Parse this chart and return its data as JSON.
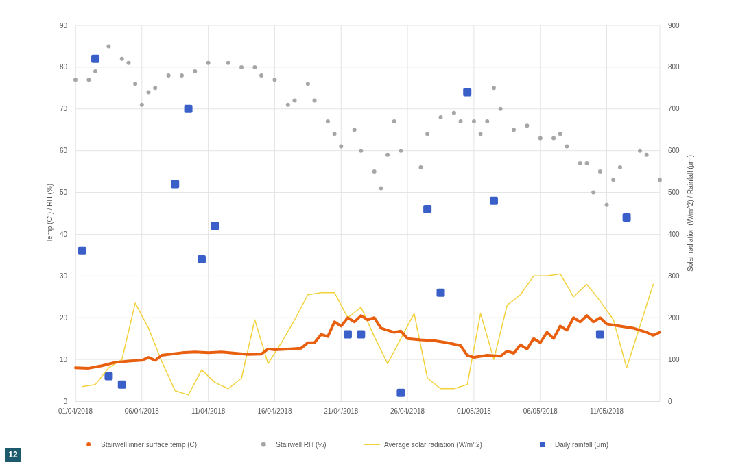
{
  "chart_data": {
    "type": "line",
    "xlabel": null,
    "ylabel": "Temp (C°) / RH (%)",
    "y2label": "Solar radiation (W/m^2) / Rainfall (μm)",
    "xlim": [
      "2018-04-01",
      "2018-05-15"
    ],
    "xticks": [
      {
        "value": "2018-04-01",
        "label": "01/04/2018"
      },
      {
        "value": "2018-04-06",
        "label": "06/04/2018"
      },
      {
        "value": "2018-04-11",
        "label": "11/04/2018"
      },
      {
        "value": "2018-04-16",
        "label": "16/04/2018"
      },
      {
        "value": "2018-04-21",
        "label": "21/04/2018"
      },
      {
        "value": "2018-04-26",
        "label": "26/04/2018"
      },
      {
        "value": "2018-05-01",
        "label": "01/05/2018"
      },
      {
        "value": "2018-05-06",
        "label": "06/05/2018"
      },
      {
        "value": "2018-05-11",
        "label": "11/05/2018"
      }
    ],
    "ylim": [
      0,
      90
    ],
    "yticks": [
      0,
      10,
      20,
      30,
      40,
      50,
      60,
      70,
      80,
      90
    ],
    "y2lim": [
      0,
      900
    ],
    "y2ticks": [
      0,
      100,
      200,
      300,
      400,
      500,
      600,
      700,
      800,
      900
    ],
    "grid": true,
    "legend": "bottom",
    "annotations": [
      "12"
    ],
    "series": [
      {
        "name": "Stairwell inner surface temp (C)",
        "color": "#e8600f",
        "marker": "none",
        "x": [
          "2018-04-01T00:00",
          "2018-04-02T00:00",
          "2018-04-03T00:00",
          "2018-04-04T00:00",
          "2018-04-05T00:00",
          "2018-04-06T00:00",
          "2018-04-06T12:00",
          "2018-04-07T00:00",
          "2018-04-07T12:00",
          "2018-04-08T00:00",
          "2018-04-09T00:00",
          "2018-04-10T00:00",
          "2018-04-11T00:00",
          "2018-04-12T00:00",
          "2018-04-13T00:00",
          "2018-04-14T00:00",
          "2018-04-15T00:00",
          "2018-04-15T12:00",
          "2018-04-16T00:00",
          "2018-04-17T00:00",
          "2018-04-18T00:00",
          "2018-04-18T12:00",
          "2018-04-19T00:00",
          "2018-04-19T12:00",
          "2018-04-20T00:00",
          "2018-04-20T12:00",
          "2018-04-21T00:00",
          "2018-04-21T12:00",
          "2018-04-22T00:00",
          "2018-04-22T12:00",
          "2018-04-23T00:00",
          "2018-04-23T12:00",
          "2018-04-24T00:00",
          "2018-04-25T00:00",
          "2018-04-25T12:00",
          "2018-04-26T00:00",
          "2018-04-27T00:00",
          "2018-04-28T00:00",
          "2018-04-29T00:00",
          "2018-04-30T00:00",
          "2018-04-30T12:00",
          "2018-05-01T00:00",
          "2018-05-02T00:00",
          "2018-05-03T00:00",
          "2018-05-03T12:00",
          "2018-05-04T00:00",
          "2018-05-04T12:00",
          "2018-05-05T00:00",
          "2018-05-05T12:00",
          "2018-05-06T00:00",
          "2018-05-06T12:00",
          "2018-05-07T00:00",
          "2018-05-07T12:00",
          "2018-05-08T00:00",
          "2018-05-08T12:00",
          "2018-05-09T00:00",
          "2018-05-09T12:00",
          "2018-05-10T00:00",
          "2018-05-10T12:00",
          "2018-05-11T00:00",
          "2018-05-12T00:00",
          "2018-05-13T00:00",
          "2018-05-14T00:00",
          "2018-05-14T12:00",
          "2018-05-15T00:00"
        ],
        "values": [
          8,
          7.9,
          8.5,
          9.3,
          9.6,
          9.8,
          10.5,
          9.8,
          11,
          11.2,
          11.6,
          11.8,
          11.6,
          11.8,
          11.5,
          11.2,
          11.3,
          12.5,
          12.3,
          12.5,
          12.7,
          14,
          14,
          16,
          15.5,
          19,
          18,
          20,
          19,
          20.5,
          19.5,
          20,
          17.5,
          16.5,
          16.8,
          15,
          14.7,
          14.5,
          14,
          13.3,
          11,
          10.5,
          11,
          10.8,
          12,
          11.5,
          13.5,
          12.5,
          15,
          14,
          16.5,
          15,
          18,
          17,
          20,
          19,
          20.5,
          19,
          20,
          18.5,
          18,
          17.5,
          16.5,
          15.8,
          16.5
        ]
      },
      {
        "name": "Stairwell RH (%)",
        "type": "scatter",
        "color": "#a6a6a6",
        "marker": "circle",
        "x": [
          "2018-04-01T00:00",
          "2018-04-02T00:00",
          "2018-04-02T12:00",
          "2018-04-03T12:00",
          "2018-04-04T12:00",
          "2018-04-05T00:00",
          "2018-04-05T12:00",
          "2018-04-06T00:00",
          "2018-04-06T12:00",
          "2018-04-07T00:00",
          "2018-04-08T00:00",
          "2018-04-09T00:00",
          "2018-04-10T00:00",
          "2018-04-11T00:00",
          "2018-04-12T12:00",
          "2018-04-13T12:00",
          "2018-04-14T12:00",
          "2018-04-15T00:00",
          "2018-04-16T00:00",
          "2018-04-17T00:00",
          "2018-04-17T12:00",
          "2018-04-18T12:00",
          "2018-04-19T00:00",
          "2018-04-20T00:00",
          "2018-04-20T12:00",
          "2018-04-21T00:00",
          "2018-04-22T00:00",
          "2018-04-22T12:00",
          "2018-04-23T12:00",
          "2018-04-24T00:00",
          "2018-04-24T12:00",
          "2018-04-25T00:00",
          "2018-04-25T12:00",
          "2018-04-27T00:00",
          "2018-04-27T12:00",
          "2018-04-28T12:00",
          "2018-04-29T12:00",
          "2018-04-30T00:00",
          "2018-05-01T00:00",
          "2018-05-01T12:00",
          "2018-05-02T00:00",
          "2018-05-02T12:00",
          "2018-05-03T00:00",
          "2018-05-04T00:00",
          "2018-05-05T00:00",
          "2018-05-06T00:00",
          "2018-05-07T00:00",
          "2018-05-07T12:00",
          "2018-05-08T00:00",
          "2018-05-09T00:00",
          "2018-05-09T12:00",
          "2018-05-10T00:00",
          "2018-05-10T12:00",
          "2018-05-11T00:00",
          "2018-05-11T12:00",
          "2018-05-12T00:00",
          "2018-05-13T12:00",
          "2018-05-14T00:00",
          "2018-05-15T00:00"
        ],
        "values": [
          77,
          77,
          79,
          85,
          82,
          81,
          76,
          71,
          74,
          75,
          78,
          78,
          79,
          81,
          81,
          80,
          80,
          78,
          77,
          71,
          72,
          76,
          72,
          67,
          64,
          61,
          65,
          60,
          55,
          51,
          59,
          67,
          60,
          56,
          64,
          68,
          69,
          67,
          67,
          64,
          67,
          75,
          70,
          65,
          66,
          63,
          63,
          64,
          61,
          57,
          57,
          50,
          55,
          47,
          53,
          56,
          60,
          59,
          53
        ]
      },
      {
        "name": "Average solar radiation (W/m^2)",
        "type": "line",
        "axis": "y2",
        "color": "#f2d13a",
        "marker": "none",
        "x": [
          "2018-04-01T12:00",
          "2018-04-02T12:00",
          "2018-04-03T12:00",
          "2018-04-04T12:00",
          "2018-04-05T12:00",
          "2018-04-06T12:00",
          "2018-04-07T12:00",
          "2018-04-08T12:00",
          "2018-04-09T12:00",
          "2018-04-10T12:00",
          "2018-04-11T12:00",
          "2018-04-12T12:00",
          "2018-04-13T12:00",
          "2018-04-14T12:00",
          "2018-04-15T12:00",
          "2018-04-16T12:00",
          "2018-04-17T12:00",
          "2018-04-18T12:00",
          "2018-04-19T12:00",
          "2018-04-20T12:00",
          "2018-04-21T12:00",
          "2018-04-22T12:00",
          "2018-04-23T12:00",
          "2018-04-24T12:00",
          "2018-04-25T12:00",
          "2018-04-26T12:00",
          "2018-04-27T12:00",
          "2018-04-28T12:00",
          "2018-04-29T12:00",
          "2018-04-30T12:00",
          "2018-05-01T12:00",
          "2018-05-02T12:00",
          "2018-05-03T12:00",
          "2018-05-04T12:00",
          "2018-05-05T12:00",
          "2018-05-06T12:00",
          "2018-05-07T12:00",
          "2018-05-08T12:00",
          "2018-05-09T12:00",
          "2018-05-10T12:00",
          "2018-05-11T12:00",
          "2018-05-12T12:00",
          "2018-05-13T12:00",
          "2018-05-14T12:00"
        ],
        "values": [
          35,
          40,
          80,
          100,
          235,
          175,
          95,
          25,
          15,
          75,
          45,
          30,
          55,
          195,
          90,
          140,
          195,
          255,
          260,
          260,
          200,
          225,
          155,
          90,
          150,
          210,
          55,
          30,
          30,
          40,
          210,
          100,
          230,
          255,
          300,
          300,
          305,
          250,
          280,
          240,
          195,
          80,
          180,
          280
        ]
      },
      {
        "name": "Daily rainfall (μm)",
        "type": "scatter",
        "axis": "y2",
        "color": "#3a5fc8",
        "marker": "square",
        "x": [
          "2018-04-01T12:00",
          "2018-04-02T12:00",
          "2018-04-03T12:00",
          "2018-04-04T12:00",
          "2018-04-08T12:00",
          "2018-04-09T12:00",
          "2018-04-10T12:00",
          "2018-04-11T12:00",
          "2018-04-21T12:00",
          "2018-04-22T12:00",
          "2018-04-25T12:00",
          "2018-04-27T12:00",
          "2018-04-28T12:00",
          "2018-04-30T12:00",
          "2018-05-02T12:00",
          "2018-05-10T12:00",
          "2018-05-12T12:00"
        ],
        "values": [
          360,
          820,
          60,
          40,
          520,
          700,
          340,
          420,
          160,
          160,
          20,
          460,
          260,
          740,
          480,
          160,
          440
        ]
      }
    ]
  }
}
